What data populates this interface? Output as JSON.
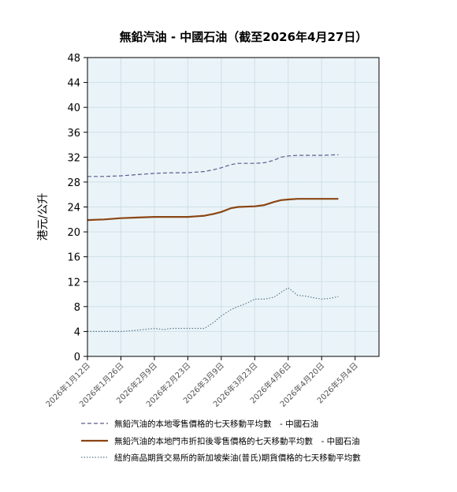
{
  "chart_data": {
    "type": "line",
    "title": "無鉛汽油 - 中國石油（截至2026年4月27日）",
    "xlabel": "",
    "ylabel": "港元/公升",
    "ylim": [
      0,
      48
    ],
    "yticks": [
      0,
      4,
      8,
      12,
      16,
      20,
      24,
      28,
      32,
      36,
      40,
      44,
      48
    ],
    "xlim": [
      "2026-01-12",
      "2026-05-14"
    ],
    "xticks": [
      {
        "date": "2026-01-12",
        "label": "2026年1月12日"
      },
      {
        "date": "2026-01-26",
        "label": "2026年1月26日"
      },
      {
        "date": "2026-02-09",
        "label": "2026年2月9日"
      },
      {
        "date": "2026-02-23",
        "label": "2026年2月23日"
      },
      {
        "date": "2026-03-09",
        "label": "2026年3月9日"
      },
      {
        "date": "2026-03-23",
        "label": "2026年3月23日"
      },
      {
        "date": "2026-04-06",
        "label": "2026年4月6日"
      },
      {
        "date": "2026-04-20",
        "label": "2026年4月20日"
      },
      {
        "date": "2026-05-04",
        "label": "2026年5月4日"
      }
    ],
    "grid": true,
    "legend_position": "bottom",
    "series": [
      {
        "name": "無鉛汽油的本地零售價格的七天移動平均數　- 中國石油",
        "color": "#5a5a8c",
        "style": "dashed",
        "x": [
          "2026-01-12",
          "2026-01-19",
          "2026-01-26",
          "2026-02-02",
          "2026-02-09",
          "2026-02-16",
          "2026-02-23",
          "2026-03-02",
          "2026-03-06",
          "2026-03-09",
          "2026-03-13",
          "2026-03-16",
          "2026-03-23",
          "2026-03-27",
          "2026-03-31",
          "2026-04-03",
          "2026-04-06",
          "2026-04-10",
          "2026-04-13",
          "2026-04-20",
          "2026-04-27"
        ],
        "y": [
          28.9,
          28.9,
          29.0,
          29.2,
          29.4,
          29.5,
          29.5,
          29.7,
          30.0,
          30.3,
          30.8,
          31.0,
          31.0,
          31.1,
          31.5,
          32.0,
          32.2,
          32.3,
          32.3,
          32.3,
          32.4
        ]
      },
      {
        "name": "無鉛汽油的本地門市折扣後零售價格的七天移動平均數　- 中國石油",
        "color": "#8b4513",
        "style": "solid",
        "x": [
          "2026-01-12",
          "2026-01-19",
          "2026-01-26",
          "2026-02-02",
          "2026-02-09",
          "2026-02-16",
          "2026-02-23",
          "2026-03-02",
          "2026-03-06",
          "2026-03-09",
          "2026-03-13",
          "2026-03-16",
          "2026-03-23",
          "2026-03-27",
          "2026-03-31",
          "2026-04-03",
          "2026-04-06",
          "2026-04-10",
          "2026-04-13",
          "2026-04-20",
          "2026-04-27"
        ],
        "y": [
          21.9,
          22.0,
          22.2,
          22.3,
          22.4,
          22.4,
          22.4,
          22.6,
          22.9,
          23.2,
          23.8,
          24.0,
          24.1,
          24.3,
          24.8,
          25.1,
          25.2,
          25.3,
          25.3,
          25.3,
          25.3
        ]
      },
      {
        "name": "紐約商品期貨交易所的新加坡柴油(普氏)期貨價格的七天移動平均數",
        "color": "#5a7a8c",
        "style": "dotted",
        "x": [
          "2026-01-12",
          "2026-01-19",
          "2026-01-26",
          "2026-02-02",
          "2026-02-09",
          "2026-02-13",
          "2026-02-16",
          "2026-02-23",
          "2026-03-02",
          "2026-03-06",
          "2026-03-09",
          "2026-03-13",
          "2026-03-16",
          "2026-03-20",
          "2026-03-23",
          "2026-03-27",
          "2026-03-31",
          "2026-04-03",
          "2026-04-06",
          "2026-04-10",
          "2026-04-13",
          "2026-04-17",
          "2026-04-20",
          "2026-04-23",
          "2026-04-27"
        ],
        "y": [
          4.0,
          4.0,
          4.0,
          4.2,
          4.5,
          4.3,
          4.5,
          4.5,
          4.5,
          5.5,
          6.5,
          7.5,
          8.0,
          8.6,
          9.2,
          9.2,
          9.5,
          10.3,
          11.0,
          9.8,
          9.7,
          9.4,
          9.2,
          9.3,
          9.6
        ]
      }
    ]
  }
}
